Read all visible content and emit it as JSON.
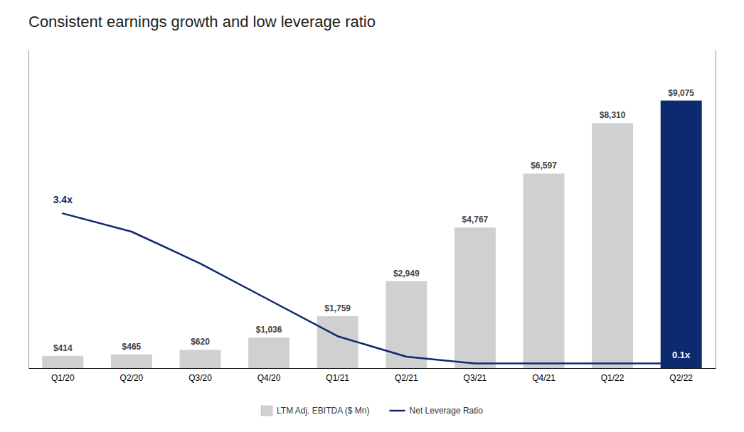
{
  "chart_data": {
    "type": "bar",
    "title": "Consistent earnings growth and low leverage ratio",
    "categories": [
      "Q1/20",
      "Q2/20",
      "Q3/20",
      "Q4/20",
      "Q1/21",
      "Q2/21",
      "Q3/21",
      "Q4/21",
      "Q1/22",
      "Q2/22"
    ],
    "series": [
      {
        "name": "LTM Adj. EBITDA ($ Mn)",
        "type": "bar",
        "color": "#d0d0d0",
        "colors": [
          "#d0d0d0",
          "#d0d0d0",
          "#d0d0d0",
          "#d0d0d0",
          "#d0d0d0",
          "#d0d0d0",
          "#d0d0d0",
          "#d0d0d0",
          "#d0d0d0",
          "#0d2a6e"
        ],
        "values": [
          414,
          465,
          620,
          1036,
          1759,
          2949,
          4767,
          6597,
          8310,
          9075
        ],
        "value_labels": [
          "$414",
          "$465",
          "$620",
          "$1,036",
          "$1,759",
          "$2,949",
          "$4,767",
          "$6,597",
          "$8,310",
          "$9,075"
        ]
      },
      {
        "name": "Net Leverage Ratio",
        "type": "line",
        "color": "#0d2a6e",
        "axis": "y2",
        "values": [
          3.4,
          3.0,
          2.3,
          1.5,
          0.7,
          0.25,
          0.1,
          0.1,
          0.1,
          0.1
        ]
      }
    ],
    "ylim": [
      0,
      10800
    ],
    "y2lim": [
      0,
      7.0
    ],
    "data_labels": true,
    "tick_labels": "x",
    "grid": false,
    "legend": "bottom",
    "annotations": [
      "3.4x",
      "0.1x"
    ]
  }
}
